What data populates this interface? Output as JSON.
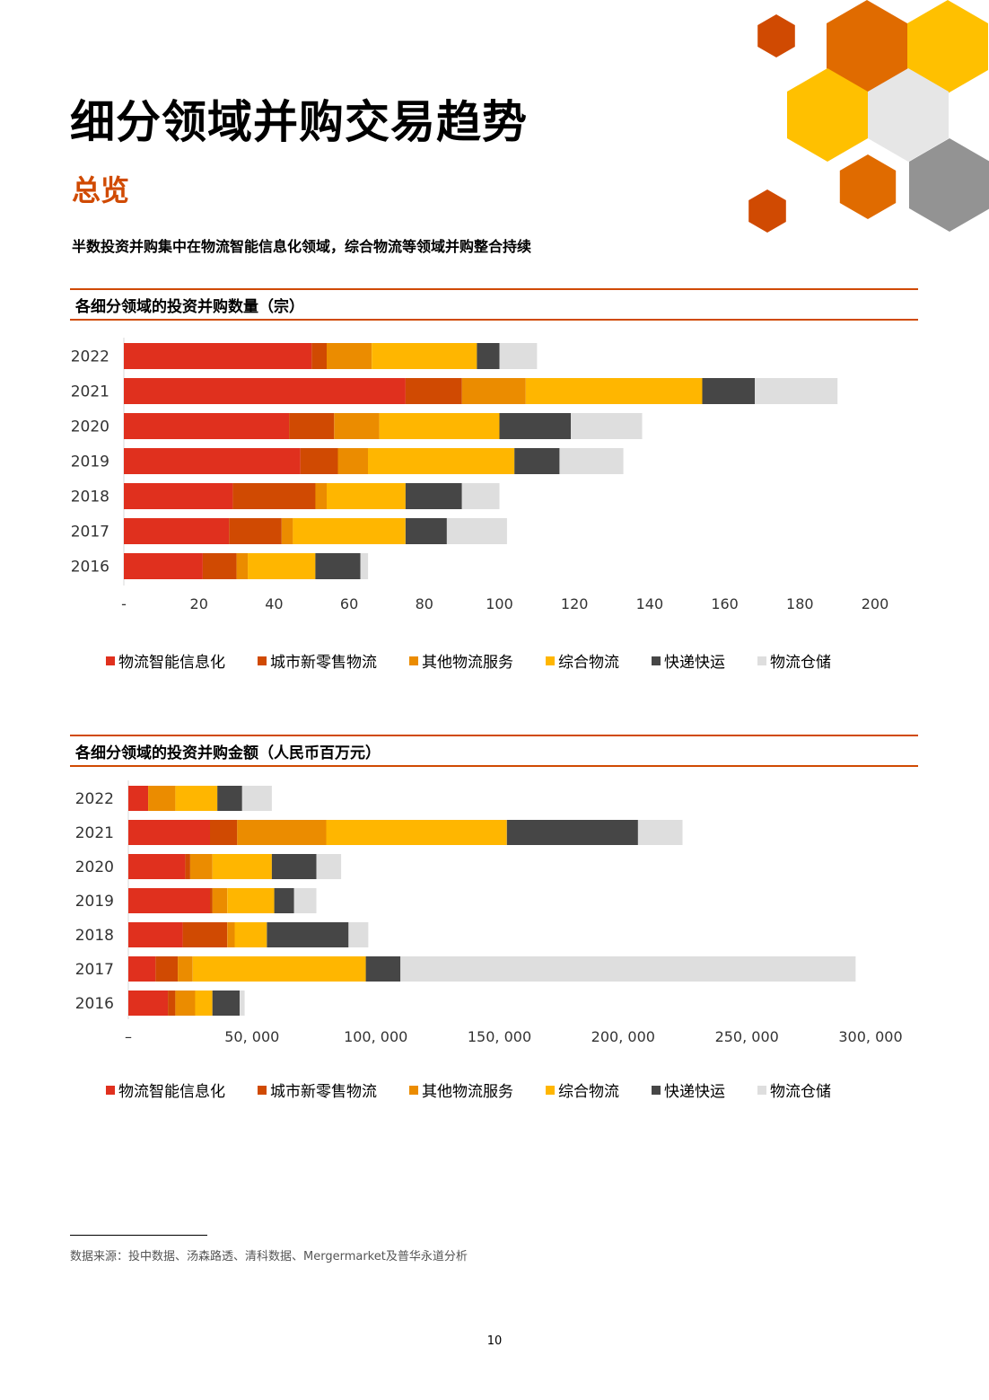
{
  "title": "细分领域并购交易趋势",
  "section": "总览",
  "summary": "半数投资并购集中在物流智能信息化领域，综合物流等领域并购整合持续",
  "colors": {
    "accent": "#d04a02",
    "series": [
      "#e0301e",
      "#d04a02",
      "#eb8c00",
      "#ffb600",
      "#464646",
      "#dedede"
    ],
    "decor": [
      "#d04a02",
      "#e06b00",
      "#ffc000",
      "#e6e6e6",
      "#939393"
    ]
  },
  "charts": [
    {
      "heading": "各细分领域的投资并购数量（宗）",
      "legend": [
        "物流智能信息化",
        "城市新零售物流",
        "其他物流服务",
        "综合物流",
        "快递快运",
        "物流仓储"
      ]
    },
    {
      "heading": "各细分领域的投资并购金额（人民币百万元）",
      "legend": [
        "物流智能信息化",
        "城市新零售物流",
        "其他物流服务",
        "综合物流",
        "快递快运",
        "物流仓储"
      ]
    }
  ],
  "chart_data": [
    {
      "type": "bar",
      "orientation": "horizontal",
      "stacked": true,
      "title": "各细分领域的投资并购数量（宗）",
      "categories": [
        "2022",
        "2021",
        "2020",
        "2019",
        "2018",
        "2017",
        "2016"
      ],
      "series": [
        {
          "name": "物流智能信息化",
          "values": [
            50,
            75,
            44,
            47,
            29,
            28,
            21
          ]
        },
        {
          "name": "城市新零售物流",
          "values": [
            4,
            15,
            12,
            10,
            22,
            14,
            9
          ]
        },
        {
          "name": "其他物流服务",
          "values": [
            12,
            17,
            12,
            8,
            3,
            3,
            3
          ]
        },
        {
          "name": "综合物流",
          "values": [
            28,
            47,
            32,
            39,
            21,
            30,
            18
          ]
        },
        {
          "name": "快递快运",
          "values": [
            6,
            14,
            19,
            12,
            15,
            11,
            12
          ]
        },
        {
          "name": "物流仓储",
          "values": [
            10,
            22,
            19,
            17,
            10,
            16,
            2
          ]
        }
      ],
      "xlim": [
        0,
        200
      ],
      "x_ticks": [
        "-",
        "20",
        "40",
        "60",
        "80",
        "100",
        "120",
        "140",
        "160",
        "180",
        "200"
      ],
      "legend_position": "bottom"
    },
    {
      "type": "bar",
      "orientation": "horizontal",
      "stacked": true,
      "title": "各细分领域的投资并购金额（人民币百万元）",
      "categories": [
        "2022",
        "2021",
        "2020",
        "2019",
        "2018",
        "2017",
        "2016"
      ],
      "series": [
        {
          "name": "物流智能信息化",
          "values": [
            8000,
            33000,
            23000,
            33000,
            22000,
            11000,
            16000
          ]
        },
        {
          "name": "城市新零售物流",
          "values": [
            0,
            11000,
            2000,
            1000,
            18000,
            9000,
            3000
          ]
        },
        {
          "name": "其他物流服务",
          "values": [
            11000,
            36000,
            9000,
            6000,
            3000,
            6000,
            8000
          ]
        },
        {
          "name": "综合物流",
          "values": [
            17000,
            73000,
            24000,
            19000,
            13000,
            70000,
            7000
          ]
        },
        {
          "name": "快递快运",
          "values": [
            10000,
            53000,
            18000,
            8000,
            33000,
            14000,
            11000
          ]
        },
        {
          "name": "物流仓储",
          "values": [
            12000,
            18000,
            10000,
            9000,
            8000,
            184000,
            2000
          ]
        }
      ],
      "xlim": [
        0,
        300000
      ],
      "x_ticks": [
        "–",
        "50, 000",
        "100, 000",
        "150, 000",
        "200, 000",
        "250, 000",
        "300, 000"
      ],
      "legend_position": "bottom"
    }
  ],
  "footnote": "数据来源：投中数据、汤森路透、清科数据、Mergermarket及普华永道分析",
  "page_number": "10"
}
